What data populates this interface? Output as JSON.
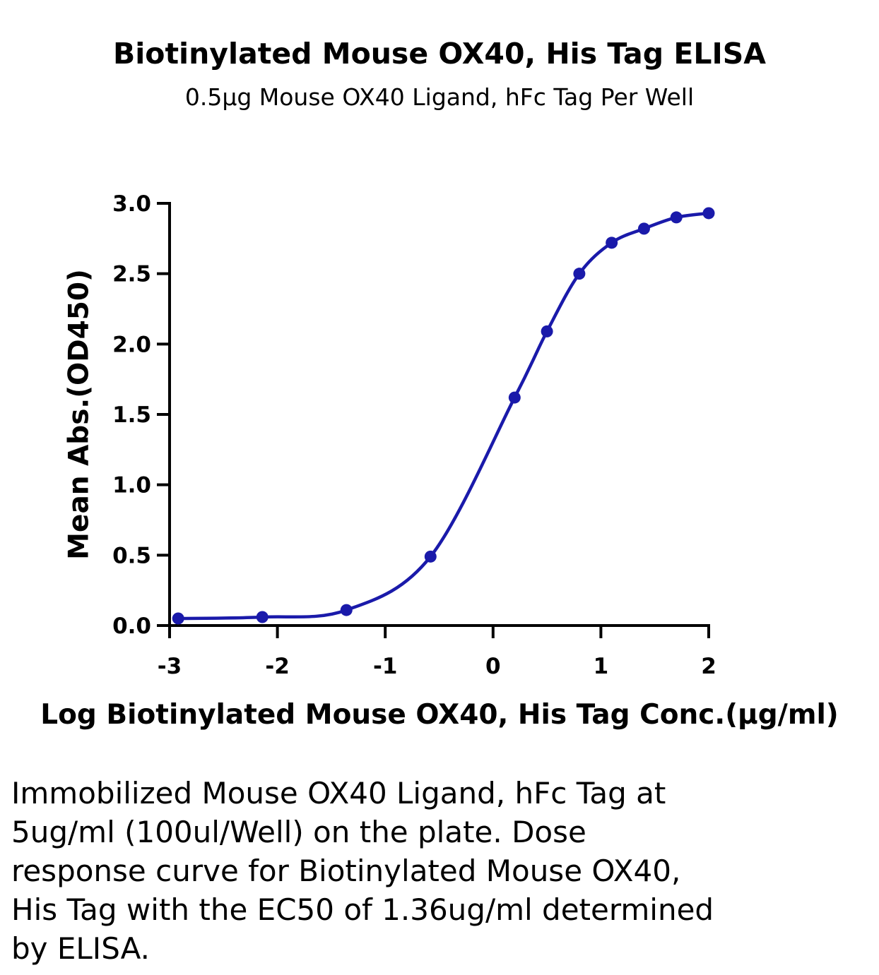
{
  "chart_data": {
    "type": "scatter",
    "title": "Biotinylated Mouse OX40, His Tag ELISA",
    "subtitle": "0.5μg Mouse OX40 Ligand, hFc Tag Per Well",
    "xlabel": "Log Biotinylated Mouse OX40, His Tag Conc.(μg/ml)",
    "ylabel": "Mean Abs.(OD450)",
    "xlim": [
      -3,
      2
    ],
    "ylim": [
      0,
      3
    ],
    "x_ticks": [
      "-3",
      "-2",
      "-1",
      "0",
      "1",
      "2"
    ],
    "y_ticks": [
      "0.0",
      "0.5",
      "1.0",
      "1.5",
      "2.0",
      "2.5",
      "3.0"
    ],
    "grid": false,
    "series": [
      {
        "x": [
          -2.92,
          -2.14,
          -1.36,
          -0.58,
          0.2,
          0.5,
          0.8,
          1.1,
          1.4,
          1.7,
          2.0
        ],
        "y": [
          0.05,
          0.06,
          0.11,
          0.49,
          1.62,
          2.09,
          2.5,
          2.72,
          2.82,
          2.9,
          2.93
        ],
        "color": "#1a1aaa",
        "fit": "4PL sigmoidal curve"
      }
    ]
  },
  "caption": "Immobilized Mouse OX40 Ligand, hFc Tag at 5ug/ml (100ul/Well) on the plate. Dose response curve for Biotinylated Mouse OX40, His Tag with the EC50 of 1.36ug/ml determined by ELISA."
}
